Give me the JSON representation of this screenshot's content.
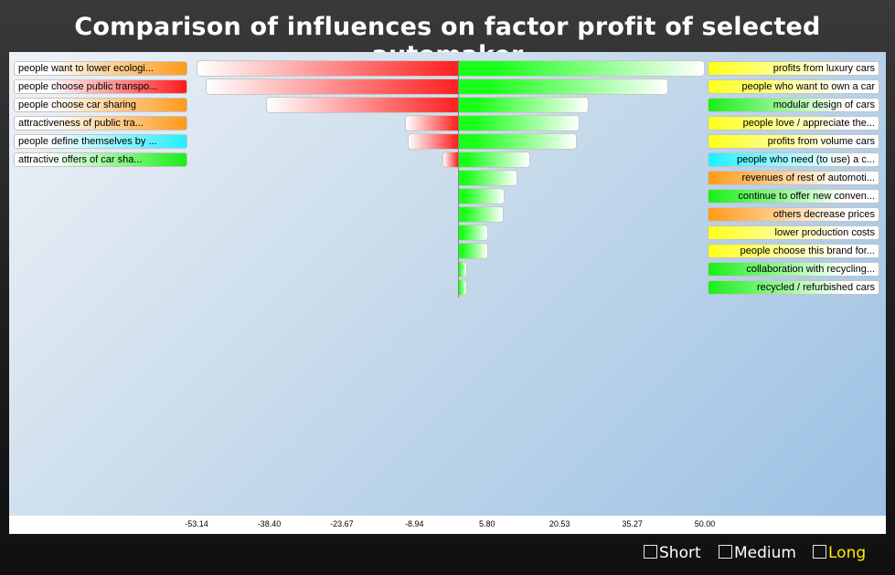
{
  "title": "Comparison of influences on factor profit of selected automaker",
  "options": [
    {
      "label": "Short",
      "selected": false
    },
    {
      "label": "Medium",
      "selected": false
    },
    {
      "label": "Long",
      "selected": true
    }
  ],
  "colors": {
    "negative_bar": "#ff1f1f",
    "positive_bar": "#1aff1a",
    "orange": "#ff9a1a",
    "red": "#ff1a1a",
    "cyan": "#22eeff",
    "green": "#1aee1a",
    "yellow": "#ffff1a",
    "selected_option": "#ffef00"
  },
  "chart_data": {
    "type": "bar",
    "orientation": "horizontal",
    "title": "Comparison of influences on factor profit of selected automaker",
    "xlim": [
      -53.14,
      50.0
    ],
    "x_ticks": [
      "-53.14",
      "-38.40",
      "-23.67",
      "-8.94",
      "5.80",
      "20.53",
      "35.27",
      "50.00"
    ],
    "negative_series": [
      {
        "label": "people want to lower ecologi...",
        "value": -53.14,
        "color": "orange"
      },
      {
        "label": "people choose public transpo...",
        "value": -51.2,
        "color": "red"
      },
      {
        "label": "people choose car sharing",
        "value": -39.0,
        "color": "orange"
      },
      {
        "label": "attractiveness of public tra...",
        "value": -10.8,
        "color": "orange"
      },
      {
        "label": "people define themselves by ...",
        "value": -10.3,
        "color": "cyan"
      },
      {
        "label": "attractive offers of car sha...",
        "value": -3.3,
        "color": "green"
      }
    ],
    "positive_series": [
      {
        "label": "profits from luxury cars",
        "value": 50.0,
        "color": "yellow"
      },
      {
        "label": "people who want to own a car",
        "value": 42.6,
        "color": "yellow"
      },
      {
        "label": "modular design of cars",
        "value": 26.4,
        "color": "green"
      },
      {
        "label": "people love / appreciate the...",
        "value": 24.5,
        "color": "yellow"
      },
      {
        "label": "profits from volume cars",
        "value": 24.1,
        "color": "yellow"
      },
      {
        "label": "people who need (to use) a c...",
        "value": 14.6,
        "color": "cyan"
      },
      {
        "label": "revenues of rest of automoti...",
        "value": 11.9,
        "color": "orange"
      },
      {
        "label": "continue to offer new conven...",
        "value": 9.3,
        "color": "green"
      },
      {
        "label": "others decrease prices",
        "value": 9.1,
        "color": "orange"
      },
      {
        "label": "lower production costs",
        "value": 6.0,
        "color": "yellow"
      },
      {
        "label": "people choose this brand for...",
        "value": 6.0,
        "color": "yellow"
      },
      {
        "label": "collaboration with recycling...",
        "value": 1.8,
        "color": "green"
      },
      {
        "label": "recycled / refurbished cars",
        "value": 1.8,
        "color": "green"
      }
    ]
  }
}
